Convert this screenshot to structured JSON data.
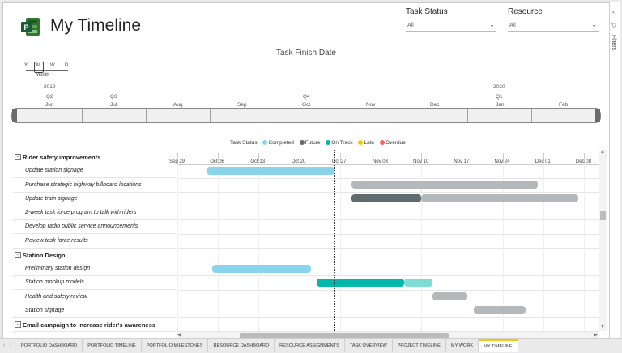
{
  "app": {
    "title": "My Timeline"
  },
  "slicers": [
    {
      "label": "Task Status",
      "value": "All"
    },
    {
      "label": "Resource",
      "value": "All"
    }
  ],
  "filters_pane": {
    "label": "Filters"
  },
  "chart": {
    "title": "Task Finish Date",
    "granularity": {
      "options": [
        "Y",
        "M",
        "W",
        "D"
      ],
      "selected": "Month"
    },
    "timeline": {
      "years": [
        "2019",
        "2020"
      ],
      "quarters": [
        "Q2",
        "Q3",
        "Q4",
        "Q1"
      ],
      "months": [
        "Jun",
        "Jul",
        "Aug",
        "Sep",
        "Oct",
        "Nov",
        "Dec",
        "Jan",
        "Feb"
      ]
    },
    "legend": {
      "title": "Task Status",
      "items": [
        {
          "label": "Completed",
          "color": "#8ad4eb"
        },
        {
          "label": "Future",
          "color": "#5f6b6d"
        },
        {
          "label": "On Track",
          "color": "#01b8aa"
        },
        {
          "label": "Late",
          "color": "#f2c80f"
        },
        {
          "label": "Overdue",
          "color": "#fd625e"
        }
      ]
    },
    "axis_dates": [
      "Sep 29",
      "Oct 06",
      "Oct 13",
      "Oct 20",
      "Oct 27",
      "Nov 03",
      "Nov 10",
      "Nov 17",
      "Nov 24",
      "Dec 01",
      "Dec 08"
    ],
    "today": "Oct 27"
  },
  "tasks": [
    {
      "label": "Rider safety improvements",
      "group": true
    },
    {
      "label": "Update station signage",
      "group": false
    },
    {
      "label": "Purchase strategic highway billboard locations",
      "group": false
    },
    {
      "label": "Update train signage",
      "group": false
    },
    {
      "label": "2-week task force program to talk with riders",
      "group": false
    },
    {
      "label": "Develop radio public service announcements",
      "group": false
    },
    {
      "label": "Review task force results",
      "group": false
    },
    {
      "label": "Station Design",
      "group": true
    },
    {
      "label": "Preliminary station design",
      "group": false
    },
    {
      "label": "Station mockup models",
      "group": false
    },
    {
      "label": "Health and safety review",
      "group": false
    },
    {
      "label": "Station signage",
      "group": false
    },
    {
      "label": "Email campaign to increase rider's awareness",
      "group": true
    }
  ],
  "bars": [
    {
      "row": 1,
      "start": "Oct 04",
      "end": "Oct 26",
      "status": "Completed",
      "color": "#8ad4eb"
    },
    {
      "row": 2,
      "start": "Oct 29",
      "end": "Nov 30",
      "status": "Future",
      "color": "#b3b8ba"
    },
    {
      "row": 3,
      "start": "Oct 29",
      "end": "Nov 10",
      "status": "Future",
      "color": "#5f6b6d"
    },
    {
      "row": 3,
      "start": "Nov 10",
      "end": "Dec 07",
      "status": "Future",
      "color": "#b3b8ba"
    },
    {
      "row": 8,
      "start": "Oct 05",
      "end": "Oct 22",
      "status": "Completed",
      "color": "#8ad4eb"
    },
    {
      "row": 9,
      "start": "Oct 23",
      "end": "Nov 07",
      "status": "On Track",
      "color": "#01b8aa"
    },
    {
      "row": 9,
      "start": "Nov 07",
      "end": "Nov 12",
      "status": "On Track",
      "color": "#7fdcd4"
    },
    {
      "row": 10,
      "start": "Nov 12",
      "end": "Nov 18",
      "status": "Future",
      "color": "#b3b8ba"
    },
    {
      "row": 11,
      "start": "Nov 19",
      "end": "Nov 28",
      "status": "Future",
      "color": "#b3b8ba"
    }
  ],
  "tabs": [
    {
      "label": "PORTFOLIO DASHBOARD",
      "active": false
    },
    {
      "label": "PORTFOLIO TIMELINE",
      "active": false
    },
    {
      "label": "PORTFOLIO MILESTONES",
      "active": false
    },
    {
      "label": "RESOURCE DASHBOARD",
      "active": false
    },
    {
      "label": "RESOURCE ASSIGNMENTS",
      "active": false
    },
    {
      "label": "TASK OVERVIEW",
      "active": false
    },
    {
      "label": "PROJECT TIMELINE",
      "active": false
    },
    {
      "label": "MY WORK",
      "active": false
    },
    {
      "label": "MY TIMELINE",
      "active": true
    }
  ]
}
